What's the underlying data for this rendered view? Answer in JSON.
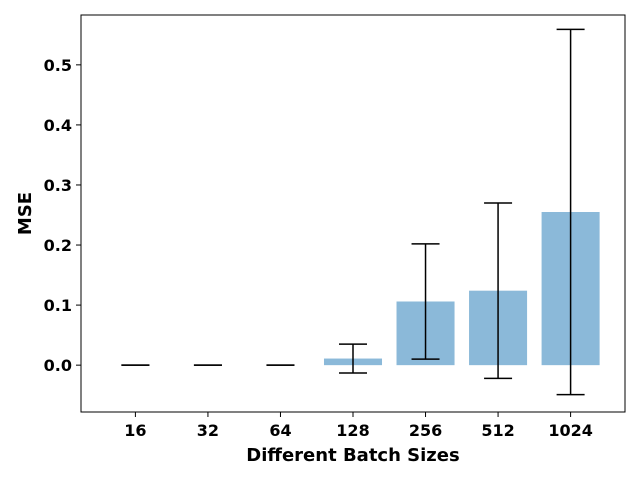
{
  "chart_data": {
    "type": "bar",
    "title": "",
    "xlabel": "Different Batch Sizes",
    "ylabel": "MSE",
    "categories": [
      "16",
      "32",
      "64",
      "128",
      "256",
      "512",
      "1024"
    ],
    "values": [
      0.0,
      0.0,
      0.0,
      0.011,
      0.106,
      0.124,
      0.255
    ],
    "errors": [
      0.0,
      0.0,
      0.0,
      0.024,
      0.096,
      0.146,
      0.304
    ],
    "ylim": [
      -0.078,
      0.583
    ],
    "yticks": [
      0.0,
      0.1,
      0.2,
      0.3,
      0.4,
      0.5
    ],
    "ytick_labels": [
      "0.0",
      "0.1",
      "0.2",
      "0.3",
      "0.4",
      "0.5"
    ],
    "grid": false,
    "bar_color": "#8bb9d9",
    "errorbar_color": "#000000"
  }
}
